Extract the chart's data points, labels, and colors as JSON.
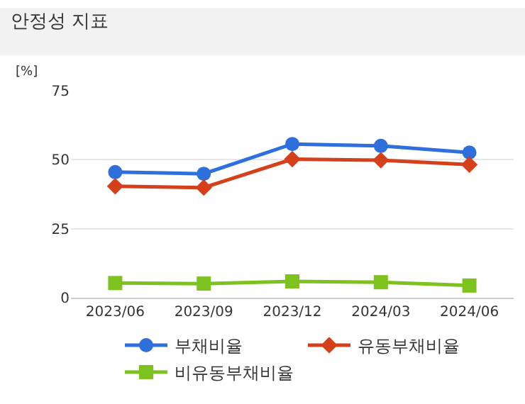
{
  "chart_data": {
    "type": "line",
    "title": "안정성 지표",
    "ylabel": "[%]",
    "categories": [
      "2023/06",
      "2023/09",
      "2023/12",
      "2024/03",
      "2024/06"
    ],
    "ylim": [
      0,
      75
    ],
    "yticks": [
      0,
      25,
      50,
      75
    ],
    "grid": "y",
    "legend": "bottom",
    "line_style": "solid",
    "series": [
      {
        "name": "부채비율",
        "color": "#2f6fdc",
        "marker": "circle",
        "values": [
          45.5,
          44.9,
          55.7,
          55.0,
          52.6
        ]
      },
      {
        "name": "유동부채비율",
        "color": "#d4401a",
        "marker": "diamond",
        "values": [
          40.4,
          39.9,
          50.2,
          49.8,
          48.2
        ]
      },
      {
        "name": "비유동부채비율",
        "color": "#7dc21e",
        "marker": "square",
        "values": [
          5.3,
          5.1,
          5.9,
          5.6,
          4.4
        ]
      }
    ]
  }
}
